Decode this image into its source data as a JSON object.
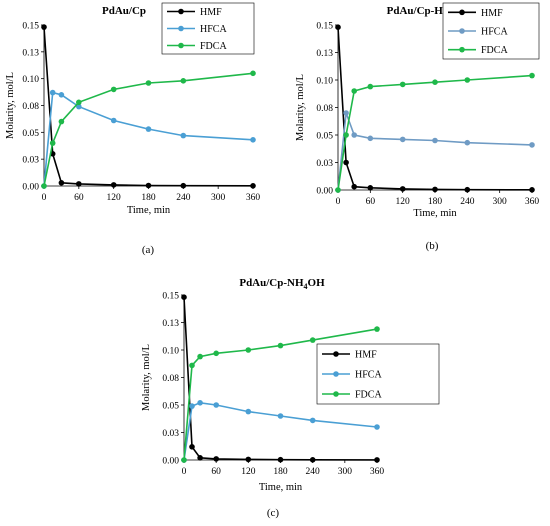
{
  "chart_data": [
    {
      "type": "line",
      "panel_label": "(a)",
      "title": "PdAu/Cp",
      "xlabel": "Time, min",
      "ylabel": "Molarity, mol/L",
      "x_ticks": [
        "0",
        "60",
        "120",
        "180",
        "240",
        "300",
        "360"
      ],
      "y_ticks": [
        "0.00",
        "0.03",
        "0.05",
        "0.08",
        "0.10",
        "0.13",
        "0.15"
      ],
      "xlim": [
        0,
        360
      ],
      "ylim": [
        0,
        0.15
      ],
      "legend_position": "top-right",
      "series": [
        {
          "name": "HMF",
          "color": "#000000",
          "x": [
            0,
            15,
            30,
            60,
            120,
            180,
            240,
            360
          ],
          "y": [
            0.148,
            0.03,
            0.003,
            0.002,
            0.001,
            0.0005,
            0.0003,
            0.0002
          ]
        },
        {
          "name": "HFCA",
          "color": "#4a9fd4",
          "x": [
            0,
            15,
            30,
            60,
            120,
            180,
            240,
            360
          ],
          "y": [
            0.0,
            0.087,
            0.085,
            0.074,
            0.061,
            0.053,
            0.047,
            0.043
          ]
        },
        {
          "name": "FDCA",
          "color": "#1fb84a",
          "x": [
            0,
            15,
            30,
            60,
            120,
            180,
            240,
            360
          ],
          "y": [
            0.0,
            0.04,
            0.06,
            0.078,
            0.09,
            0.096,
            0.098,
            0.105
          ]
        }
      ]
    },
    {
      "type": "line",
      "panel_label": "(b)",
      "title": "PdAu/Cp-HNO",
      "title_sub": "3",
      "xlabel": "Time, min",
      "ylabel": "Molarity, mol/L",
      "x_ticks": [
        "0",
        "60",
        "120",
        "180",
        "240",
        "300",
        "360"
      ],
      "y_ticks": [
        "0.00",
        "0.03",
        "0.05",
        "0.08",
        "0.10",
        "0.13",
        "0.15"
      ],
      "xlim": [
        0,
        360
      ],
      "ylim": [
        0,
        0.15
      ],
      "legend_position": "top-right",
      "series": [
        {
          "name": "HMF",
          "color": "#000000",
          "x": [
            0,
            15,
            30,
            60,
            120,
            180,
            240,
            360
          ],
          "y": [
            0.148,
            0.025,
            0.003,
            0.002,
            0.001,
            0.0005,
            0.0003,
            0.0002
          ]
        },
        {
          "name": "HFCA",
          "color": "#6f9bc4",
          "x": [
            0,
            15,
            30,
            60,
            120,
            180,
            240,
            360
          ],
          "y": [
            0.0,
            0.07,
            0.05,
            0.047,
            0.046,
            0.045,
            0.043,
            0.041
          ]
        },
        {
          "name": "FDCA",
          "color": "#1fb84a",
          "x": [
            0,
            15,
            30,
            60,
            120,
            180,
            240,
            360
          ],
          "y": [
            0.0,
            0.05,
            0.09,
            0.094,
            0.096,
            0.098,
            0.1,
            0.104
          ]
        }
      ]
    },
    {
      "type": "line",
      "panel_label": "(c)",
      "title": "PdAu/Cp-NH",
      "title_sub": "4",
      "title_tail": "OH",
      "xlabel": "Time, min",
      "ylabel": "Molarity, mol/L",
      "x_ticks": [
        "0",
        "60",
        "120",
        "180",
        "240",
        "300",
        "360"
      ],
      "y_ticks": [
        "0.00",
        "0.03",
        "0.05",
        "0.08",
        "0.10",
        "0.13",
        "0.15"
      ],
      "xlim": [
        0,
        360
      ],
      "ylim": [
        0,
        0.15
      ],
      "legend_position": "right",
      "series": [
        {
          "name": "HMF",
          "color": "#000000",
          "x": [
            0,
            15,
            30,
            60,
            120,
            180,
            240,
            360
          ],
          "y": [
            0.148,
            0.012,
            0.002,
            0.001,
            0.0005,
            0.0003,
            0.0002,
            0.0001
          ]
        },
        {
          "name": "HFCA",
          "color": "#4a9fd4",
          "x": [
            0,
            15,
            30,
            60,
            120,
            180,
            240,
            360
          ],
          "y": [
            0.0,
            0.049,
            0.052,
            0.05,
            0.044,
            0.04,
            0.036,
            0.03
          ]
        },
        {
          "name": "FDCA",
          "color": "#1fb84a",
          "x": [
            0,
            15,
            30,
            60,
            120,
            180,
            240,
            360
          ],
          "y": [
            0.0,
            0.086,
            0.094,
            0.097,
            0.1,
            0.104,
            0.109,
            0.119
          ]
        }
      ]
    }
  ]
}
